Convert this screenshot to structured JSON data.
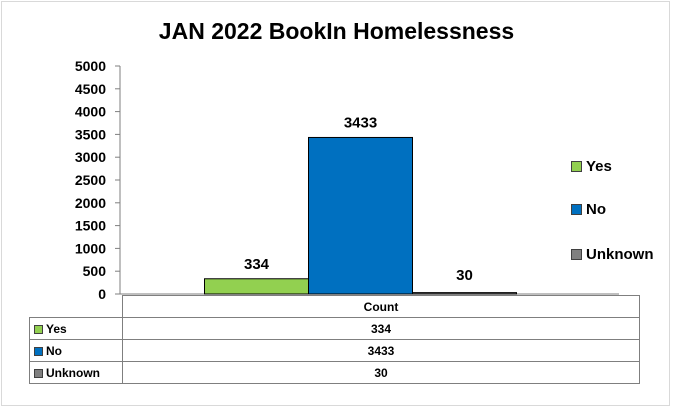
{
  "chart_data": {
    "type": "bar",
    "title": "JAN 2022 BookIn Homelessness",
    "categories": [
      "Count"
    ],
    "series": [
      {
        "name": "Yes",
        "values": [
          334
        ],
        "color": "#92d050"
      },
      {
        "name": "No",
        "values": [
          3433
        ],
        "color": "#0070c0"
      },
      {
        "name": "Unknown",
        "values": [
          30
        ],
        "color": "#808080"
      }
    ],
    "ylim": [
      0,
      5000
    ],
    "yticks": [
      0,
      500,
      1000,
      1500,
      2000,
      2500,
      3000,
      3500,
      4000,
      4500,
      5000
    ],
    "xlabel": "",
    "ylabel": "",
    "grid": false,
    "legend_position": "right",
    "data_table": true
  }
}
